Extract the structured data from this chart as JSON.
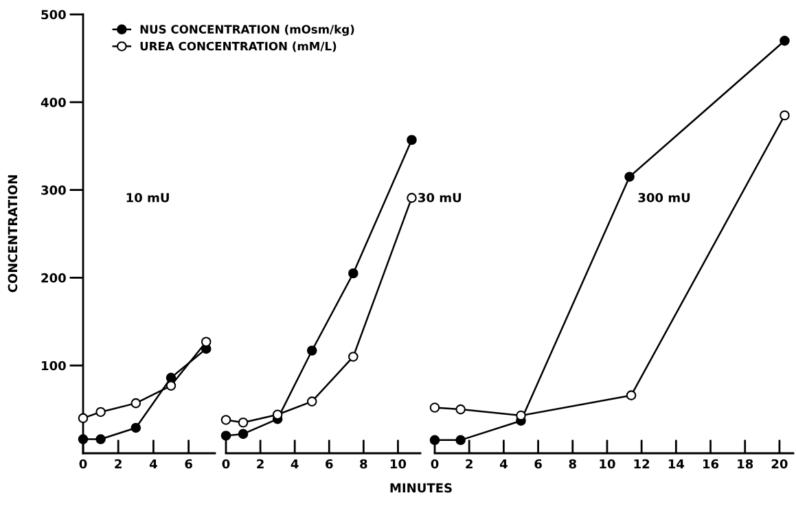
{
  "chart_data": [
    {
      "type": "line",
      "ylabel": "CONCENTRATION",
      "xlim": [
        0,
        7.5
      ],
      "xticks": [
        0,
        2,
        4,
        6
      ],
      "ylim": [
        0,
        500
      ],
      "yticks": [
        100,
        200,
        300,
        400,
        500
      ],
      "marker": "circle",
      "legend": "top right",
      "grid": false,
      "annotations": [
        "10 mU"
      ],
      "series": [
        {
          "name": "NUS CONCENTRATION (mOsm/kg)",
          "color": "#000000",
          "x": [
            0,
            1,
            3,
            5,
            7
          ],
          "values": [
            16,
            16,
            29,
            86,
            119
          ]
        },
        {
          "name": "UREA CONCENTRATION (mM/L)",
          "color": "#000000",
          "x": [
            0,
            1,
            3,
            5,
            7
          ],
          "values": [
            40,
            47,
            57,
            77,
            127
          ]
        }
      ]
    },
    {
      "type": "line",
      "xlabel": "MINUTES",
      "xlim": [
        0,
        11.3
      ],
      "xticks": [
        0,
        2,
        4,
        6,
        8,
        10
      ],
      "ylim": [
        0,
        500
      ],
      "tick_labels": "x",
      "marker": "circle",
      "grid": false,
      "annotations": [
        "30 mU"
      ],
      "series": [
        {
          "color": "#000000",
          "x": [
            0,
            1,
            3,
            5,
            7.4,
            10.8
          ],
          "values": [
            20,
            22,
            39,
            117,
            205,
            357
          ]
        },
        {
          "color": "#000000",
          "x": [
            0,
            1,
            3,
            5,
            7.4,
            10.8
          ],
          "values": [
            38,
            35,
            44,
            59,
            110,
            291
          ]
        }
      ]
    },
    {
      "type": "line",
      "xlim": [
        0,
        20.8
      ],
      "xticks": [
        0,
        2,
        4,
        6,
        8,
        10,
        12,
        14,
        16,
        18,
        20
      ],
      "ylim": [
        0,
        500
      ],
      "tick_labels": "x",
      "marker": "circle",
      "grid": false,
      "annotations": [
        "300 mU"
      ],
      "series": [
        {
          "color": "#000000",
          "x": [
            0,
            1.5,
            5,
            11.3,
            20.3
          ],
          "values": [
            15,
            15,
            37,
            315,
            470
          ]
        },
        {
          "color": "#000000",
          "x": [
            0,
            1.5,
            5,
            11.4,
            20.3
          ],
          "values": [
            52,
            50,
            43,
            66,
            385
          ]
        }
      ]
    }
  ]
}
